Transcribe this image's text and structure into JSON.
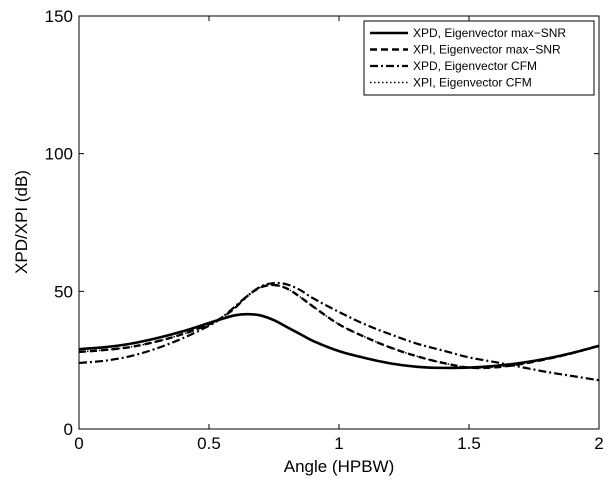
{
  "chart_data": {
    "type": "line",
    "xlabel": "Angle (HPBW)",
    "ylabel": "XPD/XPI (dB)",
    "xlim": [
      0,
      2
    ],
    "ylim": [
      0,
      150
    ],
    "xticks": [
      0,
      0.5,
      1,
      1.5,
      2
    ],
    "xtick_labels": [
      "0",
      "0.5",
      "1",
      "1.5",
      "2"
    ],
    "yticks": [
      0,
      50,
      100,
      150
    ],
    "ytick_labels": [
      "0",
      "50",
      "100",
      "150"
    ],
    "grid": false,
    "legend_position": "top-right",
    "x": [
      0,
      0.1,
      0.2,
      0.3,
      0.4,
      0.5,
      0.55,
      0.6,
      0.65,
      0.7,
      0.75,
      0.8,
      0.85,
      0.9,
      1.0,
      1.1,
      1.2,
      1.3,
      1.4,
      1.5,
      1.6,
      1.7,
      1.8,
      1.9,
      2.0
    ],
    "series": [
      {
        "name": "XPD, Eigenvector max−SNR",
        "style": "solid",
        "values": [
          29,
          29.7,
          31,
          33,
          35.5,
          38.5,
          40,
          41.3,
          41.7,
          41.2,
          39.5,
          37,
          34.5,
          32,
          28.3,
          25.8,
          23.8,
          22.6,
          22.2,
          22.3,
          22.9,
          24,
          25.6,
          27.7,
          30.2
        ]
      },
      {
        "name": "XPI, Eigenvector max−SNR",
        "style": "dashed",
        "values": [
          28,
          28.7,
          29.8,
          31.8,
          34.5,
          38,
          40.5,
          44,
          48.5,
          51.5,
          52.3,
          51,
          48,
          44.5,
          38,
          33.4,
          29.5,
          26.4,
          24,
          22.3,
          22.4,
          23.6,
          25.4,
          27.6,
          30.3
        ]
      },
      {
        "name": "XPD, Eigenvector CFM",
        "style": "dashdot",
        "values": [
          24,
          24.8,
          26.5,
          29.3,
          33,
          37.5,
          40.5,
          44.5,
          48.5,
          51.8,
          53,
          52.5,
          50.5,
          47.5,
          42.5,
          38,
          34.3,
          31,
          28.5,
          26,
          24.3,
          22.5,
          20.7,
          19.2,
          17.7
        ]
      },
      {
        "name": "XPI, Eigenvector CFM",
        "style": "dotted",
        "values": [
          28,
          28.7,
          29.8,
          31.8,
          34.5,
          38,
          40.5,
          44,
          48.5,
          51.5,
          52.3,
          51,
          48,
          44.5,
          38,
          33.4,
          29.5,
          26.4,
          24,
          22.3,
          22.4,
          23.6,
          25.4,
          27.6,
          30.3
        ]
      }
    ]
  }
}
